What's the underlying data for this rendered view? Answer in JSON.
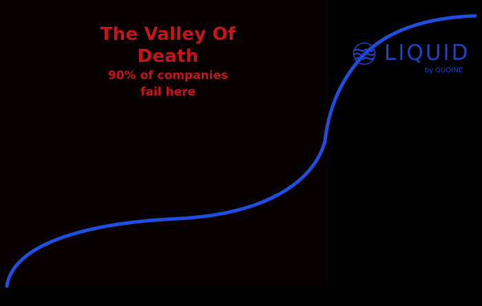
{
  "headline": {
    "title": "The Valley Of Death",
    "subtitle_line1": "90% of companies",
    "subtitle_line2": "fail here"
  },
  "brand": {
    "name": "LIQUID",
    "tagline": "by QUOINE",
    "icon": "liquid-wave-icon"
  },
  "colors": {
    "background": "#000000",
    "valley_panel": "#080102",
    "headline_red": "#c4161b",
    "curve_blue": "#1f4fe0",
    "brand_blue": "#1f44c9"
  }
}
